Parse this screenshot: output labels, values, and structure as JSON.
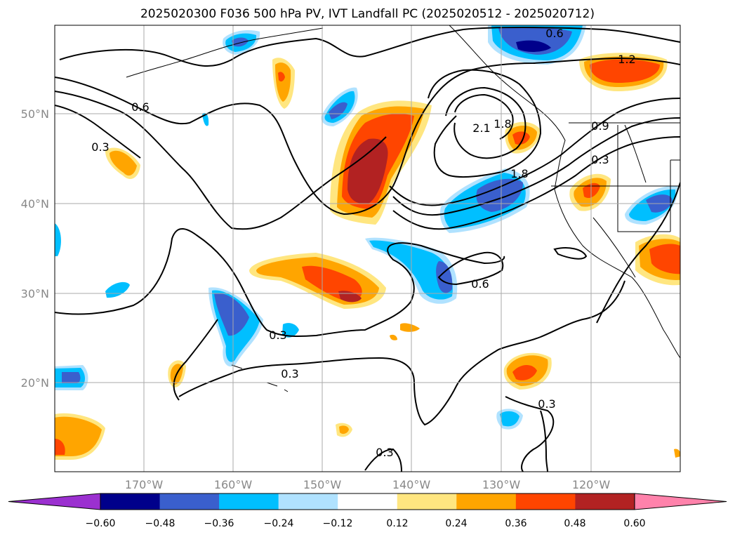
{
  "title": "2025020300 F036 500 hPa PV, IVT Landfall PC (2025020512 - 2025020712)",
  "lat_labels": [
    "50°N",
    "40°N",
    "30°N",
    "20°N"
  ],
  "lon_labels": [
    "170°W",
    "160°W",
    "150°W",
    "140°W",
    "130°W",
    "120°W"
  ],
  "contour_labels": [
    "0.6",
    "1.2",
    "0.6",
    "0.3",
    "0.9",
    "0.3",
    "2.1",
    "1.8",
    "1.8",
    "0.6",
    "0.3",
    "0.3",
    "0.3",
    "0.3"
  ],
  "colorbar": {
    "ticks": [
      "−0.60",
      "−0.48",
      "−0.36",
      "−0.24",
      "−0.12",
      "0.12",
      "0.24",
      "0.36",
      "0.48",
      "0.60"
    ],
    "colors": [
      "#9b30d0",
      "#00008b",
      "#3a5fcd",
      "#00bfff",
      "#b0e2ff",
      "#ffffff",
      "#ffe680",
      "#ffa500",
      "#ff4500",
      "#b22222",
      "#ff82ab"
    ]
  }
}
